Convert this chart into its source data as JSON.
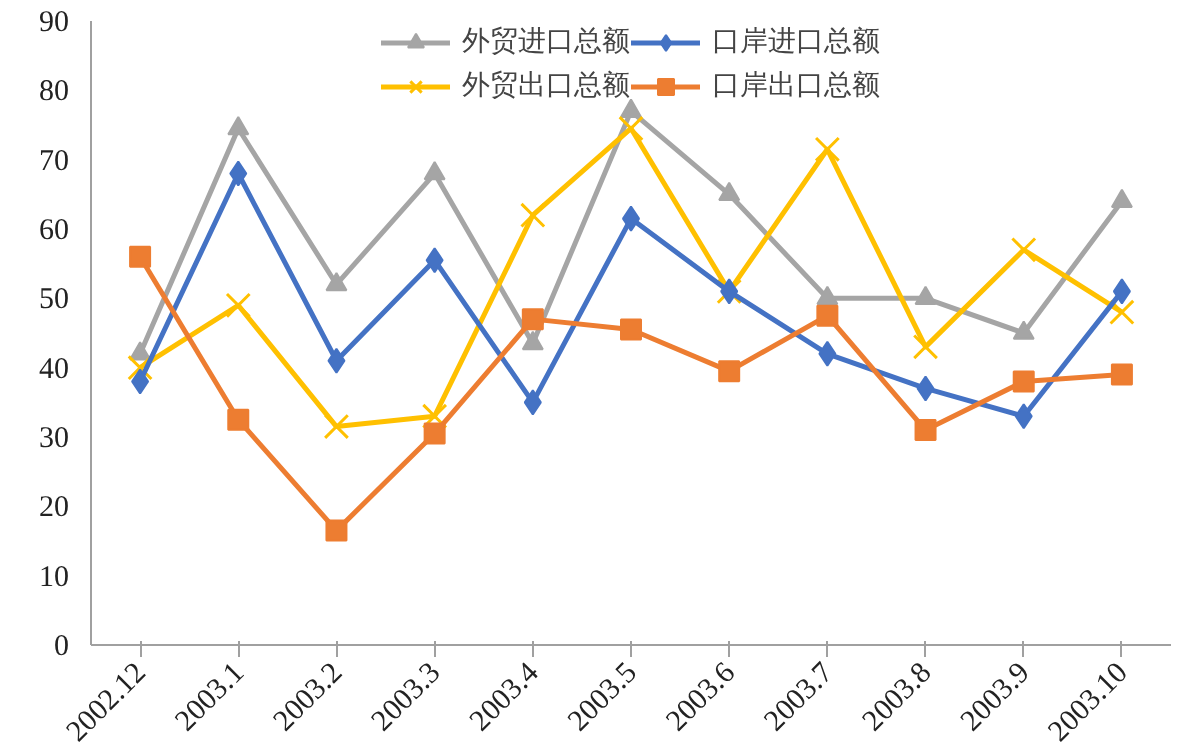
{
  "chart_data": {
    "type": "line",
    "categories": [
      "2002.12",
      "2003.1",
      "2003.2",
      "2003.3",
      "2003.4",
      "2003.5",
      "2003.6",
      "2003.7",
      "2003.8",
      "2003.9",
      "2003.10"
    ],
    "series": [
      {
        "name": "外贸进口总额",
        "color": "#a5a5a5",
        "marker": "triangle",
        "values": [
          42,
          74.5,
          52,
          68,
          43.5,
          77,
          65,
          50,
          50,
          45,
          64
        ]
      },
      {
        "name": "外贸出口总额",
        "color": "#ffc000",
        "marker": "cross",
        "values": [
          40,
          49,
          31.5,
          33,
          62,
          74.5,
          51,
          71.5,
          43,
          57,
          48
        ]
      },
      {
        "name": "口岸进口总额",
        "color": "#4472c4",
        "marker": "diamond",
        "values": [
          38,
          68,
          41,
          55.5,
          35,
          61.5,
          51,
          42,
          37,
          33,
          51
        ]
      },
      {
        "name": "口岸出口总额",
        "color": "#ed7d31",
        "marker": "square",
        "values": [
          56,
          32.5,
          16.5,
          30.5,
          47,
          45.5,
          39.5,
          47.5,
          31,
          38,
          39
        ]
      }
    ],
    "ylim": [
      0,
      90
    ],
    "yticks": [
      0,
      10,
      20,
      30,
      40,
      50,
      60,
      70,
      80,
      90
    ],
    "grid": false,
    "legend": "top",
    "line_style": "solid"
  }
}
